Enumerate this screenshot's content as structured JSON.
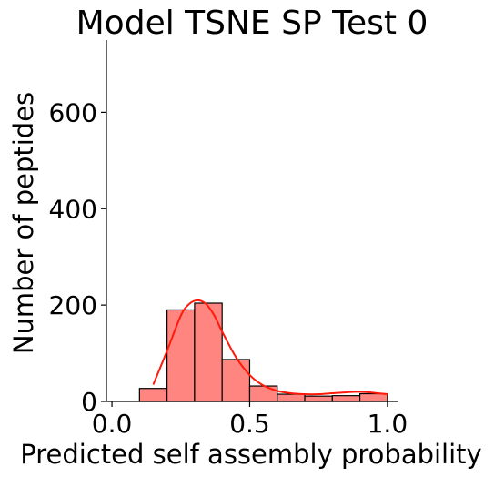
{
  "chart_data": {
    "type": "bar",
    "title": "Model TSNE SP Test 0",
    "xlabel": "Predicted self assembly probability",
    "ylabel": "Number of peptides",
    "xlim": [
      -0.02,
      1.04
    ],
    "ylim": [
      0,
      750
    ],
    "xticks": [
      0.0,
      0.5,
      1.0
    ],
    "xtick_labels": [
      "0.0",
      "0.5",
      "1.0"
    ],
    "yticks": [
      0,
      200,
      400,
      600
    ],
    "ytick_labels": [
      "0",
      "200",
      "400",
      "600"
    ],
    "bins": [
      {
        "x0": 0.1,
        "x1": 0.2,
        "count": 27
      },
      {
        "x0": 0.2,
        "x1": 0.3,
        "count": 190
      },
      {
        "x0": 0.3,
        "x1": 0.4,
        "count": 204
      },
      {
        "x0": 0.4,
        "x1": 0.5,
        "count": 87
      },
      {
        "x0": 0.5,
        "x1": 0.6,
        "count": 32
      },
      {
        "x0": 0.6,
        "x1": 0.7,
        "count": 15
      },
      {
        "x0": 0.7,
        "x1": 0.8,
        "count": 11
      },
      {
        "x0": 0.8,
        "x1": 0.9,
        "count": 12
      },
      {
        "x0": 0.9,
        "x1": 1.0,
        "count": 16
      }
    ],
    "kde": {
      "x": [
        0.15,
        0.2,
        0.25,
        0.28,
        0.31,
        0.34,
        0.37,
        0.4,
        0.45,
        0.5,
        0.55,
        0.6,
        0.65,
        0.7,
        0.75,
        0.8,
        0.85,
        0.9,
        0.95,
        1.0
      ],
      "y": [
        35,
        105,
        178,
        202,
        210,
        203,
        180,
        145,
        92,
        55,
        33,
        22,
        17,
        15,
        15,
        17,
        19,
        20,
        18,
        15
      ]
    },
    "colors": {
      "bar_fill": "#ff8680",
      "bar_edge": "#000000",
      "kde_line": "#ff1a0a"
    },
    "grid": false,
    "legend": "none"
  }
}
